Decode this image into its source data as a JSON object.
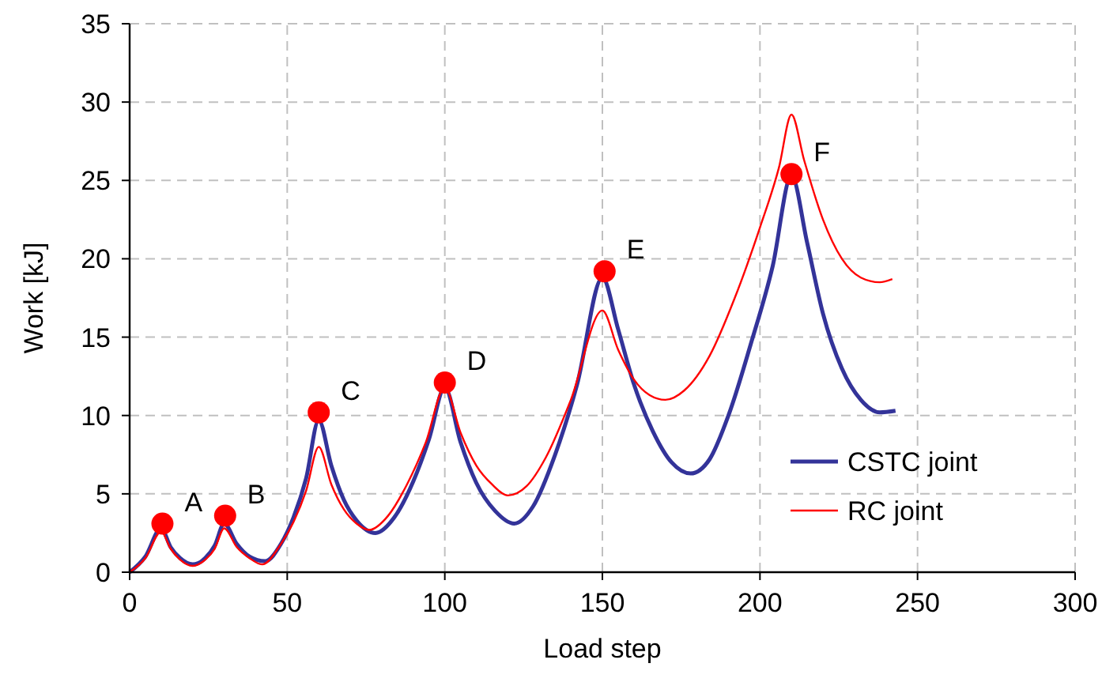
{
  "chart_data": {
    "type": "line",
    "xlabel": "Load step",
    "ylabel": "Work [kJ]",
    "xlim": [
      0,
      300
    ],
    "ylim": [
      0,
      35
    ],
    "xticks": [
      0,
      50,
      100,
      150,
      200,
      250,
      300
    ],
    "yticks": [
      0,
      5,
      10,
      15,
      20,
      25,
      30,
      35
    ],
    "grid": true,
    "legend": "bottom right",
    "line_style": "solid",
    "series": [
      {
        "name": "CSTC joint",
        "color": "#333399",
        "x": [
          0,
          5,
          10,
          13,
          16,
          20,
          24,
          27,
          30,
          34,
          38,
          43,
          48,
          52,
          56,
          60,
          64,
          68,
          72,
          78,
          84,
          90,
          95,
          100,
          105,
          110,
          116,
          122,
          128,
          135,
          142,
          150,
          155,
          160,
          166,
          172,
          178,
          184,
          190,
          197,
          204,
          210,
          215,
          220,
          226,
          232,
          238,
          243
        ],
        "values": [
          0,
          1.0,
          2.8,
          1.6,
          0.9,
          0.5,
          0.9,
          1.7,
          3.1,
          1.8,
          1.0,
          0.7,
          1.8,
          3.5,
          6.0,
          9.7,
          6.8,
          4.6,
          3.3,
          2.5,
          3.5,
          5.8,
          8.5,
          11.8,
          8.3,
          5.7,
          3.9,
          3.1,
          4.2,
          7.5,
          12.0,
          18.8,
          15.5,
          12.0,
          9.0,
          7.0,
          6.3,
          7.2,
          10.0,
          14.5,
          19.5,
          25.3,
          21.0,
          16.5,
          13.0,
          11.0,
          10.2,
          10.3
        ]
      },
      {
        "name": "RC joint",
        "color": "#ff0000",
        "x": [
          0,
          5,
          10,
          13,
          16,
          20,
          24,
          27,
          30,
          34,
          38,
          42,
          48,
          52,
          56,
          60,
          64,
          68,
          72,
          76,
          82,
          88,
          94,
          100,
          105,
          110,
          115,
          120,
          126,
          132,
          140,
          150,
          155,
          160,
          165,
          170,
          176,
          184,
          192,
          200,
          206,
          210,
          214,
          220,
          226,
          232,
          238,
          242
        ],
        "values": [
          0,
          0.9,
          2.6,
          1.5,
          0.8,
          0.4,
          0.8,
          1.5,
          2.8,
          1.6,
          0.9,
          0.5,
          1.8,
          3.2,
          5.2,
          8.0,
          5.6,
          4.0,
          3.1,
          2.7,
          3.6,
          5.6,
          8.3,
          11.8,
          8.9,
          6.8,
          5.6,
          4.9,
          5.5,
          7.3,
          11.0,
          16.7,
          14.2,
          12.3,
          11.3,
          11.0,
          11.6,
          13.8,
          17.5,
          22.0,
          25.8,
          29.2,
          26.3,
          22.5,
          20.0,
          18.8,
          18.5,
          18.7
        ]
      },
      {
        "type": "scatter",
        "marker": "circle",
        "color": "#ff0000",
        "x": [
          10.4,
          30.3,
          60,
          100,
          150.7,
          210
        ],
        "values": [
          3.1,
          3.6,
          10.2,
          12.1,
          19.2,
          25.4
        ]
      }
    ],
    "annotations": [
      {
        "text": "A",
        "x": 10.4,
        "y": 3.1
      },
      {
        "text": "B",
        "x": 30.3,
        "y": 3.6
      },
      {
        "text": "C",
        "x": 60,
        "y": 10.2
      },
      {
        "text": "D",
        "x": 100,
        "y": 12.1
      },
      {
        "text": "E",
        "x": 150.7,
        "y": 19.2
      },
      {
        "text": "F",
        "x": 210,
        "y": 25.4
      }
    ]
  }
}
